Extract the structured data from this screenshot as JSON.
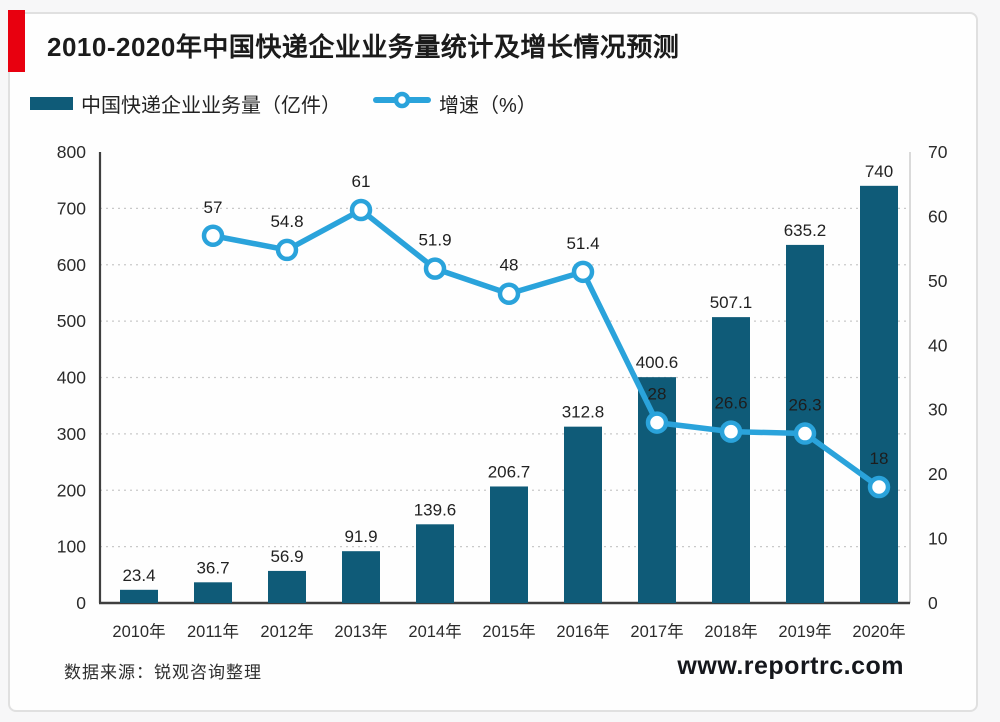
{
  "header": {
    "title": "2010-2020年中国快递企业业务量统计及增长情况预测",
    "accent_color": "#e8000f"
  },
  "legend": {
    "bar_label": "中国快递企业业务量（亿件）",
    "line_label": "增速（%）"
  },
  "chart_data": {
    "type": "bar",
    "categories": [
      "2010年",
      "2011年",
      "2012年",
      "2013年",
      "2014年",
      "2015年",
      "2016年",
      "2017年",
      "2018年",
      "2019年",
      "2020年"
    ],
    "series": [
      {
        "name": "中国快递企业业务量（亿件）",
        "type": "bar",
        "axis": "left",
        "color": "#0f5b78",
        "values": [
          23.4,
          36.7,
          56.9,
          91.9,
          139.6,
          206.7,
          312.8,
          400.6,
          507.1,
          635.2,
          740
        ]
      },
      {
        "name": "增速（%）",
        "type": "line",
        "axis": "right",
        "color": "#2aa3db",
        "marker": "circle-donut",
        "values": [
          null,
          57,
          54.8,
          61,
          51.9,
          48,
          51.4,
          28,
          26.6,
          26.3,
          18
        ]
      }
    ],
    "left_axis": {
      "min": 0,
      "max": 800,
      "ticks": [
        0,
        100,
        200,
        300,
        400,
        500,
        600,
        700,
        800
      ]
    },
    "right_axis": {
      "min": 0,
      "max": 70,
      "ticks": [
        0,
        10,
        20,
        30,
        40,
        50,
        60,
        70
      ]
    },
    "grid": "dotted-horizontal",
    "label_color": "#2b2b2b",
    "grid_color": "#c9c9c9",
    "axis_color": "#3f3f3f",
    "right_axis_line_color": "#d0d0d0"
  },
  "footer": {
    "source": "数据来源：锐观咨询整理",
    "watermark": "www.reportrc.com"
  }
}
